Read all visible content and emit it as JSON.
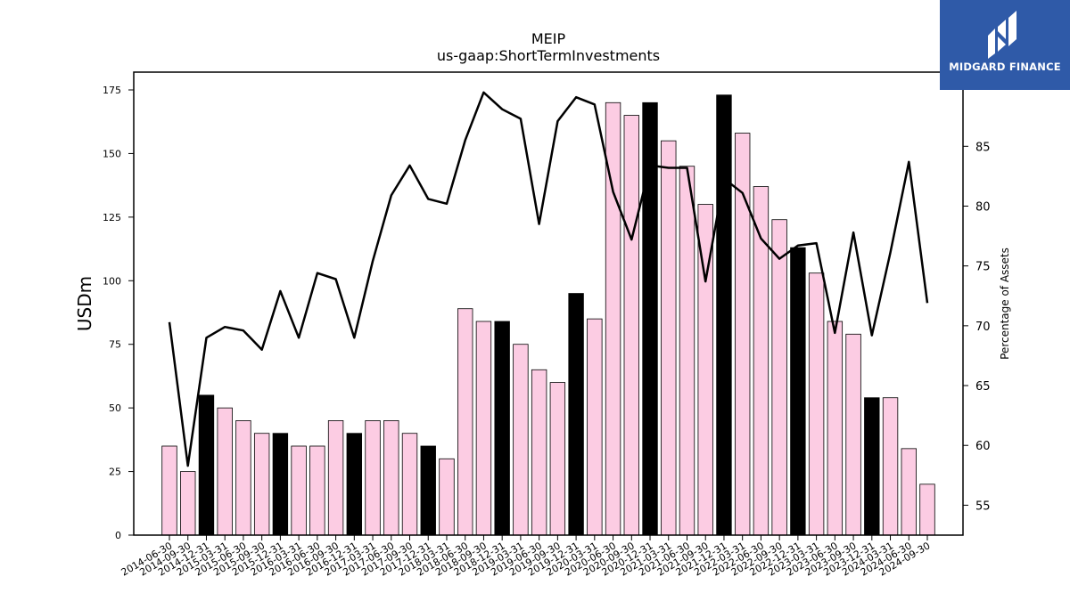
{
  "chart_data": {
    "type": "bar",
    "title": "MEIP",
    "subtitle": "us-gaap:ShortTermInvestments",
    "ylabel": "USDm",
    "y2label": "Percentage of Assets",
    "ylim": [
      0,
      182
    ],
    "y2lim": [
      52.5,
      91.2
    ],
    "yticks": [
      0,
      25,
      50,
      75,
      100,
      125,
      150,
      175
    ],
    "y2ticks": [
      55,
      60,
      65,
      70,
      75,
      80,
      85
    ],
    "categories": [
      "2014-06-30",
      "2014-09-30",
      "2014-12-31",
      "2015-03-31",
      "2015-06-30",
      "2015-09-30",
      "2015-12-31",
      "2016-03-31",
      "2016-06-30",
      "2016-09-30",
      "2016-12-31",
      "2017-03-31",
      "2017-06-30",
      "2017-09-30",
      "2017-12-31",
      "2018-03-31",
      "2018-06-30",
      "2018-09-30",
      "2018-12-31",
      "2019-03-31",
      "2019-06-30",
      "2019-09-30",
      "2019-12-31",
      "2020-03-31",
      "2020-06-30",
      "2020-09-30",
      "2020-12-31",
      "2021-03-31",
      "2021-06-30",
      "2021-09-30",
      "2021-12-31",
      "2022-03-31",
      "2022-06-30",
      "2022-09-30",
      "2022-12-31",
      "2023-03-31",
      "2023-06-30",
      "2023-09-30",
      "2023-12-31",
      "2024-03-31",
      "2024-06-30",
      "2024-09-30"
    ],
    "series": [
      {
        "kind": "bar",
        "values": [
          35,
          25,
          55,
          50,
          45,
          40,
          40,
          35,
          35,
          45,
          40,
          45,
          45,
          40,
          35,
          30,
          89,
          84,
          84,
          75,
          65,
          60,
          95,
          85,
          170,
          165,
          170,
          155,
          145,
          130,
          173,
          158,
          137,
          124,
          113,
          103,
          84,
          79,
          54,
          54,
          34,
          20
        ],
        "year_end": [
          false,
          false,
          true,
          false,
          false,
          false,
          true,
          false,
          false,
          false,
          true,
          false,
          false,
          false,
          true,
          false,
          false,
          false,
          true,
          false,
          false,
          false,
          true,
          false,
          false,
          false,
          true,
          false,
          false,
          false,
          true,
          false,
          false,
          false,
          true,
          false,
          false,
          false,
          true,
          false,
          false,
          false
        ]
      },
      {
        "kind": "line",
        "axis": "right",
        "values": [
          70.3,
          58.3,
          69.0,
          69.9,
          69.6,
          68.0,
          72.9,
          69.0,
          74.4,
          73.9,
          69.0,
          75.4,
          80.9,
          83.4,
          80.6,
          80.2,
          85.5,
          89.5,
          88.1,
          87.3,
          78.5,
          87.1,
          89.1,
          88.5,
          81.2,
          77.2,
          83.4,
          83.2,
          83.2,
          73.7,
          82.3,
          81.1,
          77.3,
          75.6,
          76.7,
          76.9,
          69.4,
          77.8,
          69.2,
          76.1,
          83.7,
          71.9
        ]
      }
    ],
    "colors": {
      "bar": "#fccce3",
      "bar_highlight": "#000000",
      "line": "#000000",
      "logo_bg": "#2f5aa8"
    }
  },
  "logo": {
    "text": "MIDGARD FINANCE",
    "icon": "midgard-logo-icon"
  }
}
